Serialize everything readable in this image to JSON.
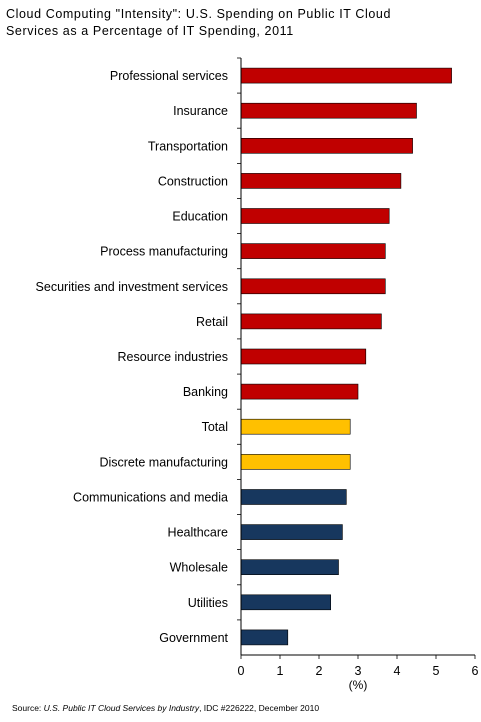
{
  "chart_data": {
    "type": "bar",
    "orientation": "horizontal",
    "title_line1": "Cloud Computing \"Intensity\": U.S. Spending on Public IT Cloud",
    "title_line2": "Services as a Percentage of IT Spending, 2011",
    "xlabel": "(%)",
    "xlim": [
      0,
      6
    ],
    "xticks": [
      "0",
      "1",
      "2",
      "3",
      "4",
      "5",
      "6"
    ],
    "grid": false,
    "legend": "none",
    "categories": [
      "Professional services",
      "Insurance",
      "Transportation",
      "Construction",
      "Education",
      "Process manufacturing",
      "Securities and investment services",
      "Retail",
      "Resource industries",
      "Banking",
      "Total",
      "Discrete manufacturing",
      "Communications and media",
      "Healthcare",
      "Wholesale",
      "Utilities",
      "Government"
    ],
    "values": [
      5.4,
      4.5,
      4.4,
      4.1,
      3.8,
      3.7,
      3.7,
      3.6,
      3.2,
      3.0,
      2.8,
      2.8,
      2.7,
      2.6,
      2.5,
      2.3,
      1.2
    ],
    "bar_colors": [
      "#c00000",
      "#c00000",
      "#c00000",
      "#c00000",
      "#c00000",
      "#c00000",
      "#c00000",
      "#c00000",
      "#c00000",
      "#c00000",
      "#ffc000",
      "#ffc000",
      "#17375e",
      "#17375e",
      "#17375e",
      "#17375e",
      "#17375e"
    ]
  },
  "source": {
    "prefix": "Source: ",
    "title": "U.S. Public IT Cloud Services by Industry",
    "suffix": ", IDC #226222, December 2010"
  }
}
